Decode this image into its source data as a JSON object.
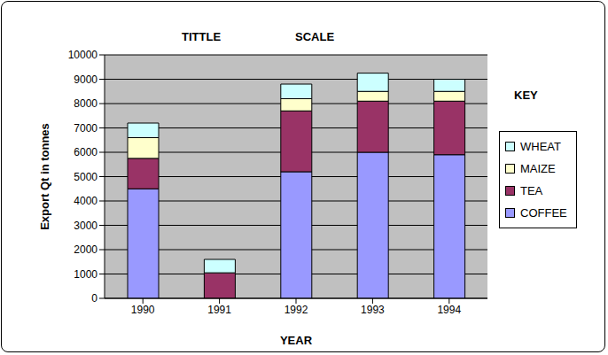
{
  "chart_data": {
    "type": "bar",
    "stacked": true,
    "grid": true,
    "legend": "right",
    "annotations": [
      "TITTLE",
      "SCALE",
      "KEY"
    ],
    "x_label": "YEAR",
    "y_label": "Export Qt in tonnes",
    "categories": [
      "1990",
      "1991",
      "1992",
      "1993",
      "1994"
    ],
    "ylim": [
      0,
      10000
    ],
    "yticks": [
      0,
      1000,
      2000,
      3000,
      4000,
      5000,
      6000,
      7000,
      8000,
      9000,
      10000
    ],
    "series": [
      {
        "name": "COFFEE",
        "color": "#9999FF",
        "values": [
          4500,
          0,
          5200,
          6000,
          5900
        ]
      },
      {
        "name": "TEA",
        "color": "#993366",
        "values": [
          1250,
          1050,
          2500,
          2100,
          2200
        ]
      },
      {
        "name": "MAIZE",
        "color": "#FFFFCC",
        "values": [
          850,
          0,
          500,
          400,
          400
        ]
      },
      {
        "name": "WHEAT",
        "color": "#CCFFFF",
        "values": [
          600,
          550,
          600,
          750,
          500
        ]
      }
    ]
  }
}
